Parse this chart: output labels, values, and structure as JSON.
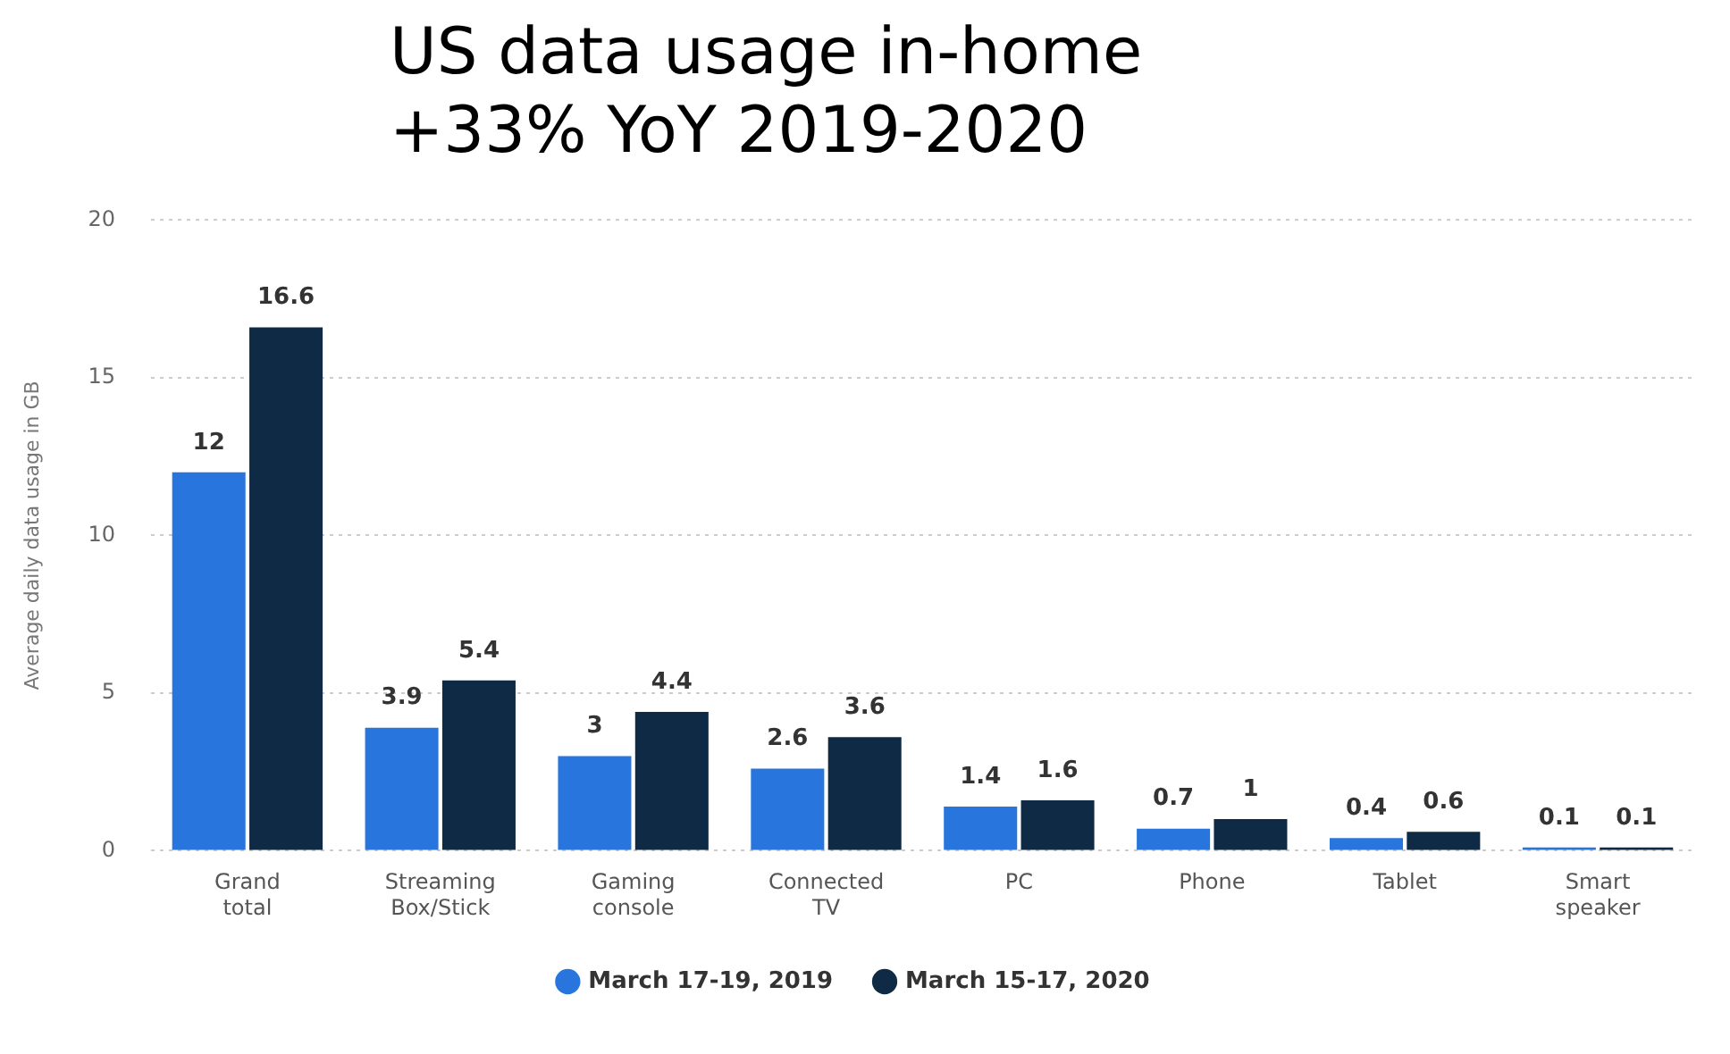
{
  "chart_data": {
    "type": "bar",
    "title": "US data usage in-home",
    "subtitle": "+33% YoY 2019-2020",
    "ylabel": "Average daily data usage in GB",
    "categories": [
      "Grand total",
      "Streaming Box/Stick",
      "Gaming console",
      "Connected TV",
      "PC",
      "Phone",
      "Tablet",
      "Smart speaker"
    ],
    "series": [
      {
        "name": "March 17-19, 2019",
        "color": "#2876dd",
        "values": [
          12,
          3.9,
          3,
          2.6,
          1.4,
          0.7,
          0.4,
          0.1
        ]
      },
      {
        "name": "March 15-17, 2020",
        "color": "#0f2a44",
        "values": [
          16.6,
          5.4,
          4.4,
          3.6,
          1.6,
          1,
          0.6,
          0.1
        ]
      }
    ],
    "ylim": [
      0,
      20
    ],
    "yticks": [
      0,
      5,
      10,
      15,
      20
    ],
    "grid": "y",
    "legend": "bottom",
    "data_labels": true
  }
}
